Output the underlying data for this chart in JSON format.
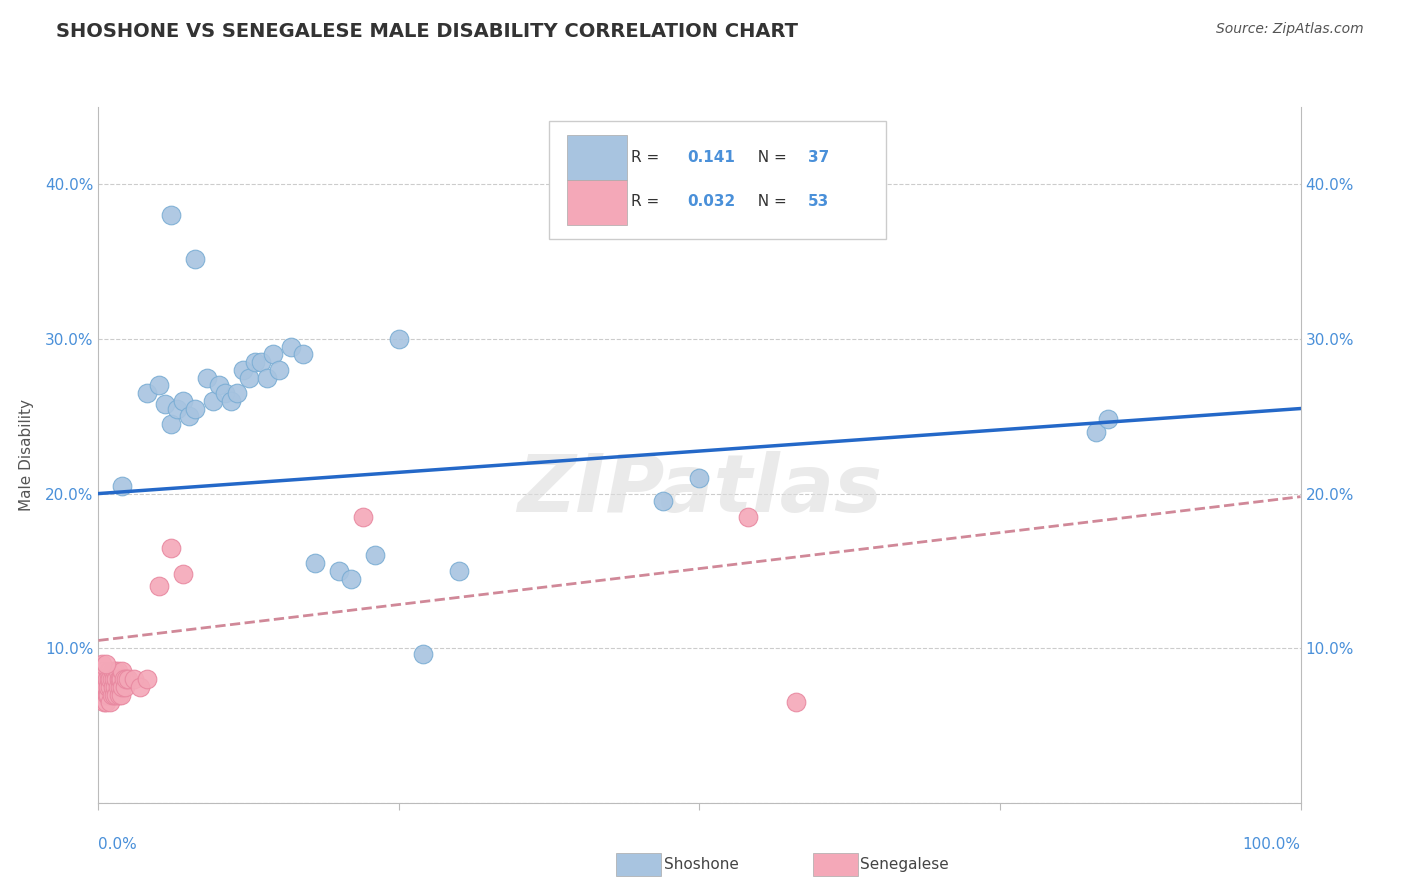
{
  "title": "SHOSHONE VS SENEGALESE MALE DISABILITY CORRELATION CHART",
  "source": "Source: ZipAtlas.com",
  "ylabel": "Male Disability",
  "xlim": [
    0.0,
    1.0
  ],
  "ylim": [
    0.0,
    0.45
  ],
  "watermark": "ZIPatlas",
  "shoshone_color": "#a8c4e0",
  "shoshone_edge_color": "#7aadd4",
  "senegalese_color": "#f4a8b8",
  "senegalese_edge_color": "#e888a0",
  "shoshone_line_color": "#2468c8",
  "senegalese_line_color": "#d08898",
  "legend_R1": "0.141",
  "legend_N1": "37",
  "legend_R2": "0.032",
  "legend_N2": "53",
  "shoshone_x": [
    0.02,
    0.04,
    0.05,
    0.055,
    0.06,
    0.065,
    0.07,
    0.075,
    0.08,
    0.09,
    0.095,
    0.1,
    0.105,
    0.11,
    0.115,
    0.12,
    0.125,
    0.13,
    0.135,
    0.14,
    0.145,
    0.15,
    0.16,
    0.17,
    0.18,
    0.2,
    0.21,
    0.23,
    0.25,
    0.27,
    0.3,
    0.47,
    0.5,
    0.83,
    0.84,
    0.06,
    0.08
  ],
  "shoshone_y": [
    0.205,
    0.265,
    0.27,
    0.258,
    0.245,
    0.255,
    0.26,
    0.25,
    0.255,
    0.275,
    0.26,
    0.27,
    0.265,
    0.26,
    0.265,
    0.28,
    0.275,
    0.285,
    0.285,
    0.275,
    0.29,
    0.28,
    0.295,
    0.29,
    0.155,
    0.15,
    0.145,
    0.16,
    0.3,
    0.096,
    0.15,
    0.195,
    0.21,
    0.24,
    0.248,
    0.38,
    0.352
  ],
  "senegalese_x": [
    0.003,
    0.003,
    0.004,
    0.004,
    0.005,
    0.005,
    0.005,
    0.006,
    0.006,
    0.007,
    0.007,
    0.008,
    0.008,
    0.009,
    0.009,
    0.01,
    0.01,
    0.01,
    0.011,
    0.011,
    0.012,
    0.012,
    0.013,
    0.013,
    0.014,
    0.014,
    0.015,
    0.015,
    0.016,
    0.016,
    0.017,
    0.017,
    0.018,
    0.018,
    0.019,
    0.019,
    0.02,
    0.02,
    0.021,
    0.022,
    0.023,
    0.025,
    0.03,
    0.035,
    0.04,
    0.05,
    0.06,
    0.22,
    0.54,
    0.58,
    0.003,
    0.006,
    0.07
  ],
  "senegalese_y": [
    0.07,
    0.08,
    0.075,
    0.085,
    0.065,
    0.07,
    0.08,
    0.065,
    0.075,
    0.07,
    0.08,
    0.07,
    0.075,
    0.08,
    0.085,
    0.065,
    0.075,
    0.08,
    0.07,
    0.08,
    0.075,
    0.085,
    0.07,
    0.08,
    0.075,
    0.085,
    0.07,
    0.08,
    0.075,
    0.085,
    0.07,
    0.08,
    0.075,
    0.08,
    0.07,
    0.08,
    0.075,
    0.085,
    0.08,
    0.075,
    0.08,
    0.08,
    0.08,
    0.075,
    0.08,
    0.14,
    0.165,
    0.185,
    0.185,
    0.065,
    0.09,
    0.09,
    0.148
  ],
  "background_color": "#ffffff",
  "grid_color": "#cccccc",
  "tick_label_color": "#4a90d9",
  "title_color": "#333333",
  "ylabel_color": "#555555",
  "source_color": "#555555"
}
